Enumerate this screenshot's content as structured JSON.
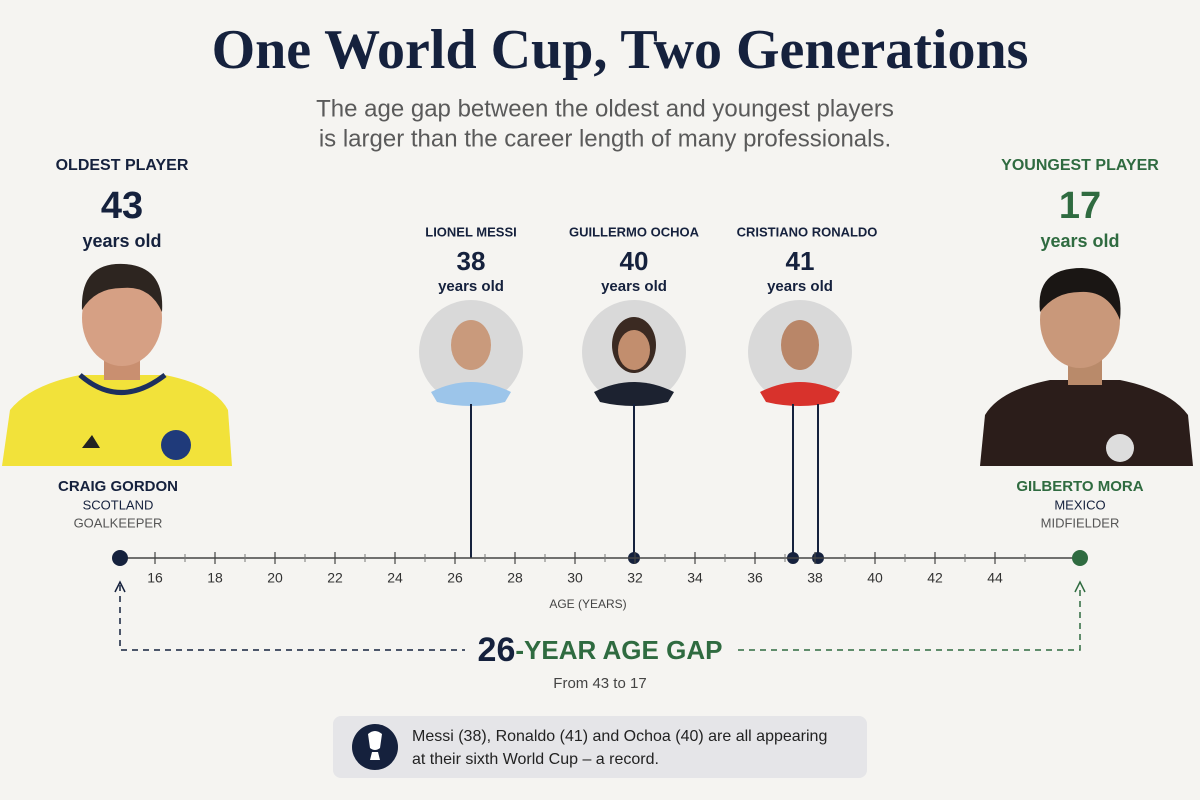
{
  "header": {
    "title": "One World Cup, Two Generations",
    "subtitle": [
      "The age gap between the oldest and youngest players",
      "is larger than the career length of many professionals."
    ]
  },
  "oldest": {
    "label": "OLDEST PLAYER",
    "age": 43,
    "unit": "years old",
    "name": "CRAIG GORDON",
    "country": "SCOTLAND",
    "position": "GOALKEEPER"
  },
  "youngest": {
    "label": "YOUNGEST PLAYER",
    "age": 17,
    "unit": "years old",
    "name": "GILBERTO MORA",
    "country": "MEXICO",
    "position": "MIDFIELDER"
  },
  "veterans": [
    {
      "name": "LIONEL MESSI",
      "age": 38,
      "unit": "years old"
    },
    {
      "name": "GUILLERMO OCHOA",
      "age": 40,
      "unit": "years old"
    },
    {
      "name": "CRISTIANO RONALDO",
      "age": 41,
      "unit": "years old"
    }
  ],
  "axis": {
    "ticks": [
      16,
      18,
      20,
      22,
      24,
      26,
      28,
      30,
      32,
      34,
      36,
      38,
      40,
      42,
      44
    ],
    "label": "AGE (YEARS)"
  },
  "gap": {
    "number": 26,
    "text": "-YEAR AGE GAP",
    "note": "From 43 to 17"
  },
  "callout": {
    "lines": [
      "Messi (38), Ronaldo (41) and Ochoa (40) are all appearing",
      "at their sixth World Cup – a record."
    ]
  }
}
